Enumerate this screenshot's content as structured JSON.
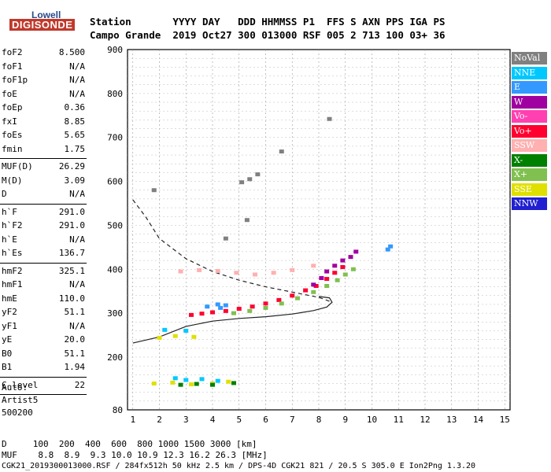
{
  "logo": {
    "line1": "Lowell",
    "line2": "DIGISONDE"
  },
  "header": {
    "row1": "Station       YYYY DAY   DDD HHMMSS P1  FFS S AXN PPS IGA PS",
    "row2": "Campo Grande  2019 Oct27 300 013000 RSF 005 2 713 100 03+ 36"
  },
  "params": [
    {
      "group": [
        {
          "label": "foF2",
          "value": "8.500"
        },
        {
          "label": "foF1",
          "value": "N/A"
        },
        {
          "label": "foF1p",
          "value": "N/A"
        },
        {
          "label": "foE",
          "value": "N/A"
        },
        {
          "label": "foEp",
          "value": "0.36"
        },
        {
          "label": "fxI",
          "value": "8.85"
        },
        {
          "label": "foEs",
          "value": "5.65"
        },
        {
          "label": "fmin",
          "value": "1.75"
        }
      ]
    },
    {
      "group": [
        {
          "label": "MUF(D)",
          "value": "26.29"
        },
        {
          "label": "M(D)",
          "value": "3.09"
        },
        {
          "label": "D",
          "value": "N/A"
        }
      ]
    },
    {
      "group": [
        {
          "label": "h`F",
          "value": "291.0"
        },
        {
          "label": "h`F2",
          "value": "291.0"
        },
        {
          "label": "h`E",
          "value": "N/A"
        },
        {
          "label": "h`Es",
          "value": "136.7"
        }
      ]
    },
    {
      "group": [
        {
          "label": "hmF2",
          "value": "325.1"
        },
        {
          "label": "hmF1",
          "value": "N/A"
        },
        {
          "label": "hmE",
          "value": "110.0"
        },
        {
          "label": "yF2",
          "value": "51.1"
        },
        {
          "label": "yF1",
          "value": "N/A"
        },
        {
          "label": "yE",
          "value": "20.0"
        },
        {
          "label": "B0",
          "value": "51.1"
        },
        {
          "label": "B1",
          "value": "1.94"
        }
      ]
    },
    {
      "group": [
        {
          "label": "C-level",
          "value": "22"
        }
      ]
    }
  ],
  "autoscaling": {
    "line1": "Auto:",
    "line2": "Artist5",
    "line3": "500200"
  },
  "legend": [
    {
      "label": "NoVal",
      "color": "#808080"
    },
    {
      "label": "NNE",
      "color": "#00c8ff"
    },
    {
      "label": "E",
      "color": "#3399ff"
    },
    {
      "label": "W",
      "color": "#a000a0"
    },
    {
      "label": "Vo-",
      "color": "#ff40b0"
    },
    {
      "label": "Vo+",
      "color": "#ff0030"
    },
    {
      "label": "SSW",
      "color": "#ffb0b0"
    },
    {
      "label": "X-",
      "color": "#008000"
    },
    {
      "label": "X+",
      "color": "#80c050"
    },
    {
      "label": "SSE",
      "color": "#e0e000"
    },
    {
      "label": "NNW",
      "color": "#2020d0"
    }
  ],
  "bottom": {
    "d_row": "D     100  200  400  600  800 1000 1500 3000 [km]",
    "muf_row": "MUF    8.8  8.9  9.3 10.0 10.9 12.3 16.2 26.3 [MHz]",
    "footer": "CGK21_2019300013000.RSF / 284fx512h 50 kHz 2.5 km / DPS-4D CGK21 821 / 20.5 S 305.0 E Ion2Png 1.3.20"
  },
  "chart_data": {
    "type": "scatter",
    "x_ticks": [
      1,
      2,
      3,
      4,
      5,
      6,
      7,
      8,
      9,
      10,
      11,
      12,
      13,
      14,
      15
    ],
    "y_ticks": [
      80,
      200,
      300,
      400,
      500,
      600,
      700,
      800,
      900
    ],
    "xlim": [
      0.8,
      15.2
    ],
    "ylim": [
      80,
      900
    ],
    "grid": true,
    "traces": [
      {
        "name": "Vo+",
        "color": "#ff0030",
        "points": [
          [
            3.2,
            296
          ],
          [
            3.6,
            299
          ],
          [
            4.0,
            302
          ],
          [
            4.5,
            305
          ],
          [
            5.0,
            310
          ],
          [
            5.5,
            315
          ],
          [
            6.0,
            322
          ],
          [
            6.5,
            330
          ],
          [
            7.0,
            340
          ],
          [
            7.5,
            352
          ],
          [
            7.9,
            362
          ],
          [
            8.3,
            378
          ],
          [
            8.6,
            392
          ],
          [
            8.9,
            405
          ]
        ]
      },
      {
        "name": "X+",
        "color": "#80c050",
        "points": [
          [
            4.8,
            300
          ],
          [
            5.4,
            305
          ],
          [
            6.0,
            312
          ],
          [
            6.6,
            322
          ],
          [
            7.2,
            334
          ],
          [
            7.8,
            348
          ],
          [
            8.3,
            362
          ],
          [
            8.7,
            375
          ],
          [
            9.0,
            388
          ],
          [
            9.3,
            400
          ]
        ]
      },
      {
        "name": "W",
        "color": "#a000a0",
        "points": [
          [
            7.8,
            365
          ],
          [
            8.1,
            380
          ],
          [
            8.3,
            395
          ],
          [
            8.6,
            408
          ],
          [
            8.9,
            420
          ],
          [
            9.2,
            428
          ],
          [
            9.4,
            440
          ]
        ]
      },
      {
        "name": "E",
        "color": "#3399ff",
        "points": [
          [
            3.8,
            315
          ],
          [
            4.2,
            320
          ],
          [
            4.5,
            318
          ],
          [
            4.3,
            312
          ],
          [
            10.6,
            445
          ],
          [
            10.7,
            452
          ]
        ]
      },
      {
        "name": "SSW",
        "color": "#ffb0b0",
        "points": [
          [
            2.8,
            395
          ],
          [
            3.5,
            398
          ],
          [
            4.2,
            396
          ],
          [
            4.9,
            392
          ],
          [
            5.6,
            388
          ],
          [
            6.3,
            392
          ],
          [
            7.0,
            398
          ],
          [
            7.8,
            408
          ]
        ]
      },
      {
        "name": "SSE",
        "color": "#e0e000",
        "points": [
          [
            1.8,
            140
          ],
          [
            2.5,
            142
          ],
          [
            3.2,
            138
          ],
          [
            4.0,
            140
          ],
          [
            4.6,
            144
          ],
          [
            2.0,
            244
          ],
          [
            2.6,
            248
          ],
          [
            3.3,
            246
          ]
        ]
      },
      {
        "name": "NNE",
        "color": "#00c8ff",
        "points": [
          [
            2.6,
            152
          ],
          [
            3.0,
            148
          ],
          [
            3.6,
            150
          ],
          [
            4.2,
            146
          ],
          [
            2.2,
            262
          ],
          [
            3.0,
            260
          ]
        ]
      },
      {
        "name": "X-",
        "color": "#008000",
        "points": [
          [
            2.8,
            137
          ],
          [
            3.4,
            139
          ],
          [
            4.0,
            137
          ],
          [
            4.8,
            141
          ]
        ]
      },
      {
        "name": "NoVal",
        "color": "#808080",
        "points": [
          [
            5.1,
            598
          ],
          [
            5.4,
            605
          ],
          [
            5.7,
            616
          ],
          [
            6.6,
            668
          ],
          [
            8.4,
            742
          ],
          [
            1.8,
            580
          ],
          [
            5.3,
            512
          ],
          [
            4.5,
            470
          ]
        ]
      }
    ],
    "profile_solid": [
      [
        1.0,
        232
      ],
      [
        2.0,
        246
      ],
      [
        3.0,
        270
      ],
      [
        4.0,
        282
      ],
      [
        5.0,
        288
      ],
      [
        6.0,
        292
      ],
      [
        7.0,
        298
      ],
      [
        7.8,
        306
      ],
      [
        8.3,
        314
      ],
      [
        8.5,
        325
      ],
      [
        8.4,
        335
      ],
      [
        8.0,
        338
      ]
    ],
    "profile_dashed": [
      [
        1.0,
        558
      ],
      [
        1.5,
        518
      ],
      [
        2.0,
        470
      ],
      [
        3.0,
        424
      ],
      [
        4.0,
        395
      ],
      [
        5.0,
        375
      ],
      [
        6.0,
        360
      ],
      [
        7.0,
        348
      ],
      [
        8.0,
        336
      ],
      [
        8.5,
        325
      ]
    ]
  }
}
